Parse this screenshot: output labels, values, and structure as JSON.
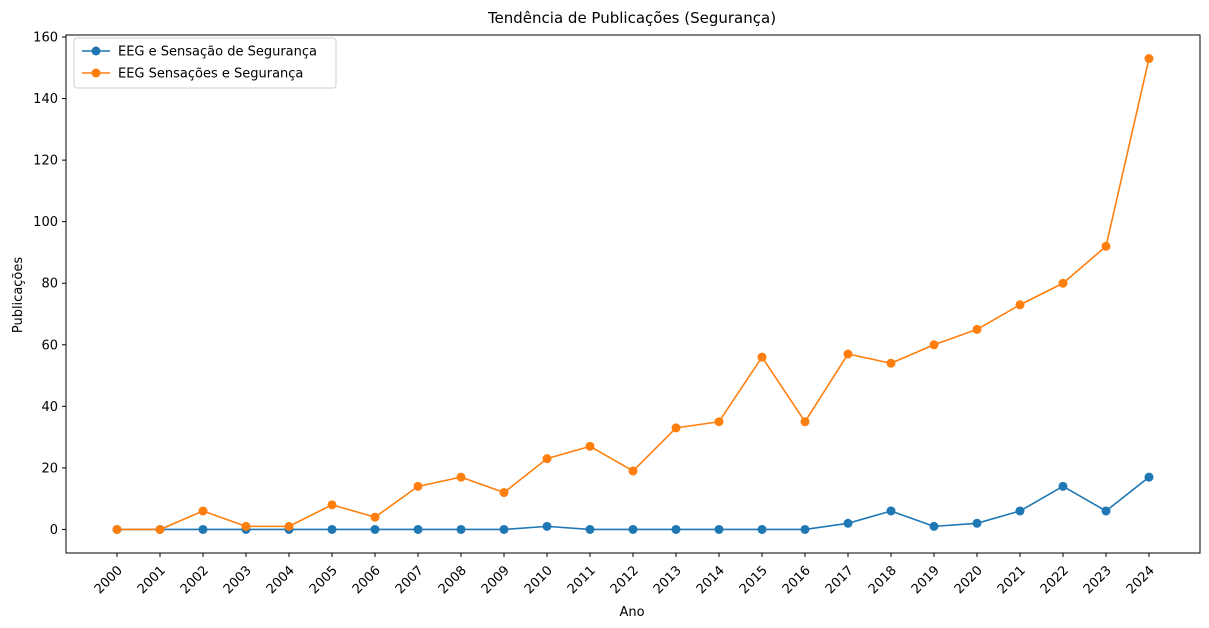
{
  "chart_data": {
    "type": "line",
    "title": "Tendência de Publicações (Segurança)",
    "xlabel": "Ano",
    "ylabel": "Publicações",
    "x": [
      "2000",
      "2001",
      "2002",
      "2003",
      "2004",
      "2005",
      "2006",
      "2007",
      "2008",
      "2009",
      "2010",
      "2011",
      "2012",
      "2013",
      "2014",
      "2015",
      "2016",
      "2017",
      "2018",
      "2019",
      "2020",
      "2021",
      "2022",
      "2023",
      "2024"
    ],
    "ylim": [
      -7.65,
      160.65
    ],
    "yticks": [
      0,
      20,
      40,
      60,
      80,
      100,
      120,
      140,
      160
    ],
    "grid": false,
    "legend_position": "top-left",
    "series": [
      {
        "name": "EEG e Sensação de Segurança",
        "color": "#1f77b4",
        "marker": "circle",
        "values": [
          0,
          0,
          0,
          0,
          0,
          0,
          0,
          0,
          0,
          0,
          1,
          0,
          0,
          0,
          0,
          0,
          0,
          2,
          6,
          1,
          2,
          6,
          14,
          6,
          17
        ]
      },
      {
        "name": "EEG Sensações e Segurança",
        "color": "#ff7f0e",
        "marker": "circle",
        "values": [
          0,
          0,
          6,
          1,
          1,
          8,
          4,
          14,
          17,
          12,
          23,
          27,
          19,
          33,
          35,
          56,
          35,
          57,
          54,
          60,
          65,
          73,
          80,
          92,
          153
        ]
      }
    ]
  }
}
